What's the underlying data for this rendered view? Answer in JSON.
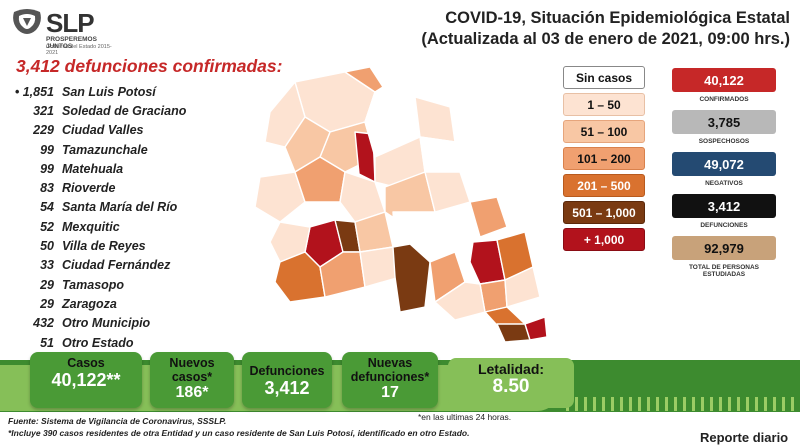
{
  "logo": {
    "word": "SLP",
    "tagline": "PROSPEREMOS JUNTOS",
    "subtag": "Gobierno del Estado 2015-2021"
  },
  "header": {
    "title_line1": "COVID-19, Situación Epidemiológica Estatal",
    "title_line2": "(Actualizada al 03 de enero de 2021, 09:00 hrs.)"
  },
  "deaths_heading": "3,412 defunciones confirmadas:",
  "municipalities": [
    {
      "bullet": "• ",
      "count": "1,851",
      "name": "San Luis Potosí"
    },
    {
      "bullet": "",
      "count": "321",
      "name": "Soledad de Graciano"
    },
    {
      "bullet": "",
      "count": "229",
      "name": "Ciudad Valles"
    },
    {
      "bullet": "",
      "count": "99",
      "name": "Tamazunchale"
    },
    {
      "bullet": "",
      "count": "99",
      "name": "Matehuala"
    },
    {
      "bullet": "",
      "count": "83",
      "name": "Rioverde"
    },
    {
      "bullet": "",
      "count": "54",
      "name": "Santa María del Río"
    },
    {
      "bullet": "",
      "count": "52",
      "name": "Mexquitic"
    },
    {
      "bullet": "",
      "count": "50",
      "name": "Villa de Reyes"
    },
    {
      "bullet": "",
      "count": "33",
      "name": "Ciudad Fernández"
    },
    {
      "bullet": "",
      "count": "29",
      "name": "Tamasopo"
    },
    {
      "bullet": "",
      "count": "29",
      "name": "Zaragoza"
    },
    {
      "bullet": "",
      "count": "432",
      "name": "Otro Municipio"
    },
    {
      "bullet": "",
      "count": "51",
      "name": "Otro Estado"
    }
  ],
  "legend": [
    {
      "label": "Sin casos",
      "bg": "#ffffff",
      "fg": "#111111",
      "border": "#888888"
    },
    {
      "label": "1 – 50",
      "bg": "#fde3d2",
      "fg": "#111111",
      "border": "#e8c0a5"
    },
    {
      "label": "51 – 100",
      "bg": "#f8c7a4",
      "fg": "#111111",
      "border": "#e6a57c"
    },
    {
      "label": "101 – 200",
      "bg": "#f0a070",
      "fg": "#111111",
      "border": "#d9814c"
    },
    {
      "label": "201 – 500",
      "bg": "#d9722f",
      "fg": "#ffffff",
      "border": "#b85a1e"
    },
    {
      "label": "501 – 1,000",
      "bg": "#7a3a12",
      "fg": "#ffffff",
      "border": "#5a280a"
    },
    {
      "label": "+ 1,000",
      "bg": "#b2121c",
      "fg": "#ffffff",
      "border": "#8a0c14"
    }
  ],
  "stats": [
    {
      "value": "40,122",
      "label": "CONFIRMADOS",
      "bg": "#c62828",
      "fg": "#ffffff"
    },
    {
      "value": "3,785",
      "label": "SOSPECHOSOS",
      "bg": "#b8b8b8",
      "fg": "#111111"
    },
    {
      "value": "49,072",
      "label": "NEGATIVOS",
      "bg": "#244a72",
      "fg": "#ffffff"
    },
    {
      "value": "3,412",
      "label": "DEFUNCIONES",
      "bg": "#111111",
      "fg": "#ffffff"
    },
    {
      "value": "92,979",
      "label": "TOTAL DE PERSONAS ESTUDIADAS",
      "bg": "#c8a27a",
      "fg": "#111111"
    }
  ],
  "bottom": {
    "casos_label": "Casos",
    "casos_value": "40,122**",
    "nuevos_label": "Nuevos casos*",
    "nuevos_value": "186*",
    "def_label": "Defunciones",
    "def_value": "3,412",
    "nuevas_def_label": "Nuevas defunciones*",
    "nuevas_def_value": "17",
    "letalidad_label": "Letalidad:",
    "letalidad_value": "8.50"
  },
  "footnotes": {
    "source": "Fuente: Sistema de Vigilancia de Coronavirus, SSSLP.",
    "note": "*Incluye 390 casos residentes de otra Entidad y un caso residente de San Luis Potosí, identificado en otro Estado.",
    "last24": "*en las ultimas 24 horas."
  },
  "report_label": "Reporte diario",
  "colors": {
    "accent_red": "#c62828",
    "band_dark": "#3d8b2f",
    "band_light": "#86bf58",
    "stat_green": "#4a9a36"
  }
}
